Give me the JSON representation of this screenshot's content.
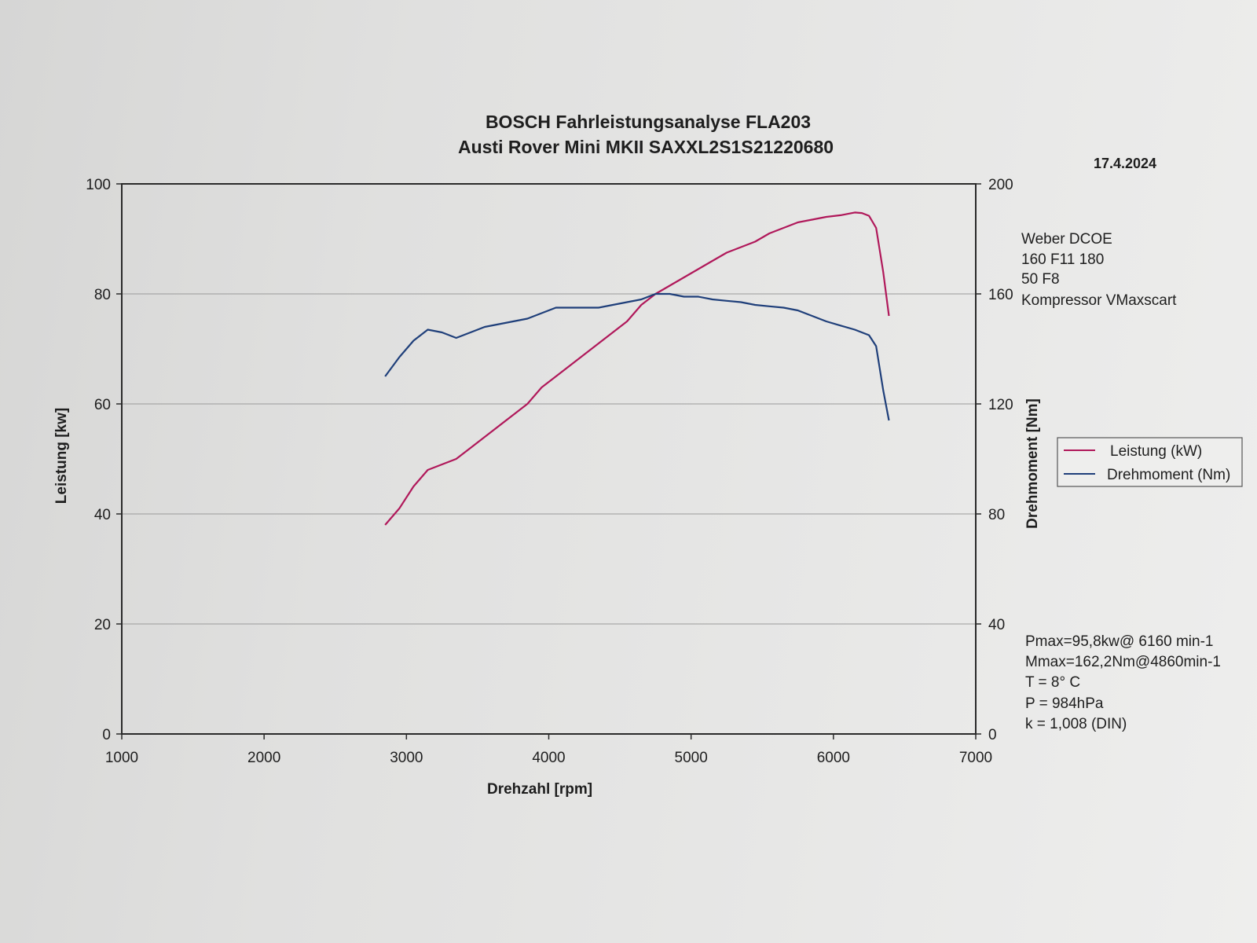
{
  "chart_data": {
    "type": "line",
    "title": "BOSCH Fahrleistungsanalyse FLA203",
    "subtitle": "Austi Rover Mini MKII SAXXL2S1S21220680",
    "date": "17.4.2024",
    "xlabel": "Drehzahl  [rpm]",
    "ylabel": "Leistung [kw]",
    "y2label": "Drehmoment [Nm]",
    "xlim": [
      1000,
      7000
    ],
    "ylim": [
      0,
      100
    ],
    "y2lim": [
      0,
      200
    ],
    "x_ticks": [
      "1000",
      "2000",
      "3000",
      "4000",
      "5000",
      "6000",
      "7000"
    ],
    "y_ticks": [
      "0",
      "20",
      "40",
      "60",
      "80",
      "100"
    ],
    "y2_ticks": [
      "0",
      "40",
      "80",
      "120",
      "160",
      "200"
    ],
    "grid": true,
    "legend_position": "right",
    "series": [
      {
        "name": "Leistung (kW)",
        "axis": "left",
        "color": "#b0185a",
        "points": [
          [
            2850,
            38
          ],
          [
            2950,
            41
          ],
          [
            3050,
            45
          ],
          [
            3150,
            48
          ],
          [
            3250,
            49
          ],
          [
            3350,
            50
          ],
          [
            3450,
            52
          ],
          [
            3550,
            54
          ],
          [
            3650,
            56
          ],
          [
            3750,
            58
          ],
          [
            3850,
            60
          ],
          [
            3950,
            63
          ],
          [
            4050,
            65
          ],
          [
            4150,
            67
          ],
          [
            4250,
            69
          ],
          [
            4350,
            71
          ],
          [
            4450,
            73
          ],
          [
            4550,
            75
          ],
          [
            4650,
            78
          ],
          [
            4750,
            80
          ],
          [
            4850,
            81.5
          ],
          [
            4950,
            83
          ],
          [
            5050,
            84.5
          ],
          [
            5150,
            86
          ],
          [
            5250,
            87.5
          ],
          [
            5350,
            88.5
          ],
          [
            5450,
            89.5
          ],
          [
            5550,
            91
          ],
          [
            5650,
            92
          ],
          [
            5750,
            93
          ],
          [
            5850,
            93.5
          ],
          [
            5950,
            94
          ],
          [
            6050,
            94.3
          ],
          [
            6150,
            94.8
          ],
          [
            6200,
            94.7
          ],
          [
            6250,
            94.2
          ],
          [
            6300,
            92
          ],
          [
            6350,
            84
          ],
          [
            6390,
            76
          ]
        ]
      },
      {
        "name": "Drehmoment (Nm)",
        "axis": "right",
        "color": "#1f3f7a",
        "points": [
          [
            2850,
            130
          ],
          [
            2950,
            137
          ],
          [
            3050,
            143
          ],
          [
            3150,
            147
          ],
          [
            3250,
            146
          ],
          [
            3350,
            144
          ],
          [
            3450,
            146
          ],
          [
            3550,
            148
          ],
          [
            3650,
            149
          ],
          [
            3750,
            150
          ],
          [
            3850,
            151
          ],
          [
            3950,
            153
          ],
          [
            4050,
            155
          ],
          [
            4150,
            155
          ],
          [
            4250,
            155
          ],
          [
            4350,
            155
          ],
          [
            4450,
            156
          ],
          [
            4550,
            157
          ],
          [
            4650,
            158
          ],
          [
            4750,
            160
          ],
          [
            4850,
            160
          ],
          [
            4950,
            159
          ],
          [
            5050,
            159
          ],
          [
            5150,
            158
          ],
          [
            5250,
            157.5
          ],
          [
            5350,
            157
          ],
          [
            5450,
            156
          ],
          [
            5550,
            155.5
          ],
          [
            5650,
            155
          ],
          [
            5750,
            154
          ],
          [
            5850,
            152
          ],
          [
            5950,
            150
          ],
          [
            6050,
            148.5
          ],
          [
            6150,
            147
          ],
          [
            6250,
            145
          ],
          [
            6300,
            141
          ],
          [
            6350,
            125
          ],
          [
            6390,
            114
          ]
        ]
      }
    ]
  },
  "notes": {
    "carb_lines": [
      "Weber DCOE",
      "160 F11 180",
      "50 F8",
      "Kompressor VMaxscart"
    ],
    "result_lines": [
      "Pmax=95,8kw@ 6160 min-1",
      "Mmax=162,2Nm@4860min-1",
      "T =  8° C",
      "P =  984hPa",
      "k =  1,008 (DIN)"
    ]
  }
}
